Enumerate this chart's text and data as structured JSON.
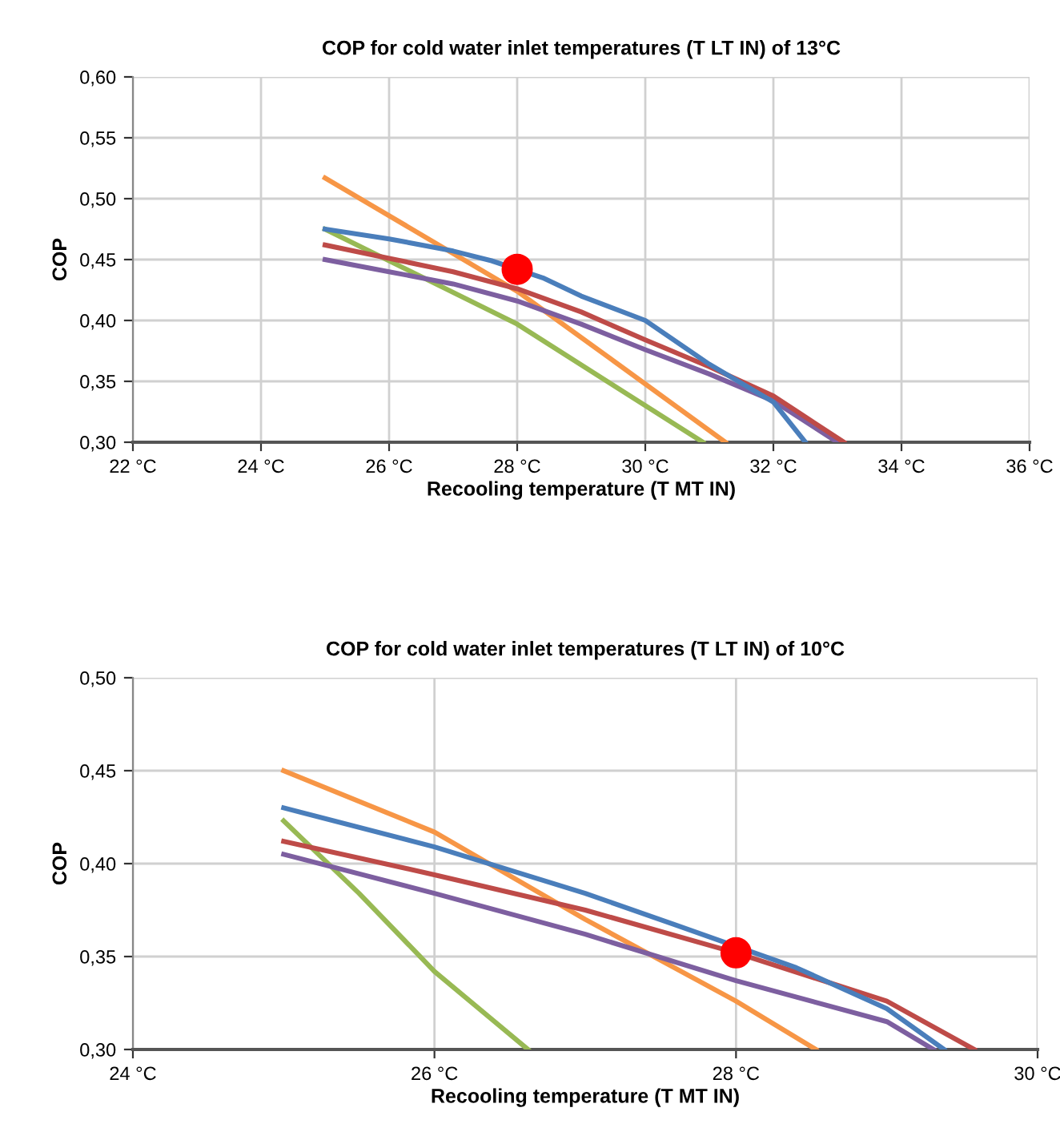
{
  "chart_data": [
    {
      "type": "line",
      "title": "COP for cold water inlet temperatures (T LT IN) of 13°C",
      "xlabel": "Recooling temperature (T MT IN)",
      "ylabel": "COP",
      "xlim": [
        22,
        36
      ],
      "xticks": [
        {
          "value": 22,
          "label": "22 °C"
        },
        {
          "value": 24,
          "label": "24 °C"
        },
        {
          "value": 26,
          "label": "26 °C"
        },
        {
          "value": 28,
          "label": "28 °C"
        },
        {
          "value": 30,
          "label": "30 °C"
        },
        {
          "value": 32,
          "label": "32 °C"
        },
        {
          "value": 34,
          "label": "34 °C"
        },
        {
          "value": 36,
          "label": "36 °C"
        }
      ],
      "ylim": [
        0.3,
        0.6
      ],
      "yticks": [
        {
          "value": 0.3,
          "label": "0,30"
        },
        {
          "value": 0.35,
          "label": "0,35"
        },
        {
          "value": 0.4,
          "label": "0,40"
        },
        {
          "value": 0.45,
          "label": "0,45"
        },
        {
          "value": 0.5,
          "label": "0,50"
        },
        {
          "value": 0.55,
          "label": "0,55"
        },
        {
          "value": 0.6,
          "label": "0,60"
        }
      ],
      "grid": true,
      "line_style": "solid",
      "series": [
        {
          "color": "#f79646",
          "x": [
            25,
            28,
            29.5,
            31.25
          ],
          "values": [
            0.517,
            0.424,
            0.367,
            0.3
          ]
        },
        {
          "color": "#98b954",
          "x": [
            25,
            28,
            30.9
          ],
          "values": [
            0.475,
            0.397,
            0.3
          ]
        },
        {
          "color": "#7d5fa0",
          "x": [
            25,
            26,
            27,
            28,
            29,
            30,
            31,
            32,
            33.0
          ],
          "values": [
            0.45,
            0.44,
            0.43,
            0.416,
            0.397,
            0.376,
            0.356,
            0.334,
            0.3
          ]
        },
        {
          "color": "#be4b48",
          "x": [
            25,
            26,
            27,
            28,
            29,
            30,
            31,
            32,
            33.1
          ],
          "values": [
            0.462,
            0.451,
            0.44,
            0.426,
            0.407,
            0.384,
            0.362,
            0.338,
            0.3
          ]
        },
        {
          "color": "#4a7ebb",
          "x": [
            25,
            26,
            27,
            27.6,
            28.4,
            29,
            30,
            31,
            32,
            32.5
          ],
          "values": [
            0.475,
            0.467,
            0.457,
            0.449,
            0.435,
            0.42,
            0.4,
            0.364,
            0.333,
            0.3
          ]
        },
        {
          "type": "scatter",
          "marker": "circle",
          "color": "#ff0000",
          "x": [
            28
          ],
          "values": [
            0.442
          ]
        }
      ]
    },
    {
      "type": "line",
      "title": "COP for cold water inlet temperatures (T LT IN) of 10°C",
      "xlabel": "Recooling temperature (T MT IN)",
      "ylabel": "COP",
      "xlim": [
        24,
        30
      ],
      "xticks": [
        {
          "value": 24,
          "label": "24 °C"
        },
        {
          "value": 26,
          "label": "26 °C"
        },
        {
          "value": 28,
          "label": "28 °C"
        },
        {
          "value": 30,
          "label": "30 °C"
        }
      ],
      "ylim": [
        0.3,
        0.5
      ],
      "yticks": [
        {
          "value": 0.3,
          "label": "0,30"
        },
        {
          "value": 0.35,
          "label": "0,35"
        },
        {
          "value": 0.4,
          "label": "0,40"
        },
        {
          "value": 0.45,
          "label": "0,45"
        },
        {
          "value": 0.5,
          "label": "0,50"
        }
      ],
      "grid": true,
      "line_style": "solid",
      "series": [
        {
          "color": "#f79646",
          "x": [
            25,
            26,
            27,
            28,
            28.53
          ],
          "values": [
            0.45,
            0.417,
            0.37,
            0.326,
            0.3
          ]
        },
        {
          "color": "#98b954",
          "x": [
            25,
            25.5,
            26,
            26.62
          ],
          "values": [
            0.423,
            0.384,
            0.342,
            0.3
          ]
        },
        {
          "color": "#7d5fa0",
          "x": [
            25,
            26,
            27,
            28,
            29,
            29.31
          ],
          "values": [
            0.405,
            0.384,
            0.362,
            0.337,
            0.315,
            0.3
          ]
        },
        {
          "color": "#be4b48",
          "x": [
            25,
            26,
            27,
            28,
            29,
            29.58
          ],
          "values": [
            0.412,
            0.394,
            0.375,
            0.352,
            0.326,
            0.3
          ]
        },
        {
          "color": "#4a7ebb",
          "x": [
            25,
            26,
            27,
            27.6,
            28.4,
            29,
            29.38
          ],
          "values": [
            0.43,
            0.409,
            0.384,
            0.367,
            0.344,
            0.322,
            0.3
          ]
        },
        {
          "type": "scatter",
          "marker": "circle",
          "color": "#ff0000",
          "x": [
            28
          ],
          "values": [
            0.352
          ]
        }
      ]
    }
  ]
}
